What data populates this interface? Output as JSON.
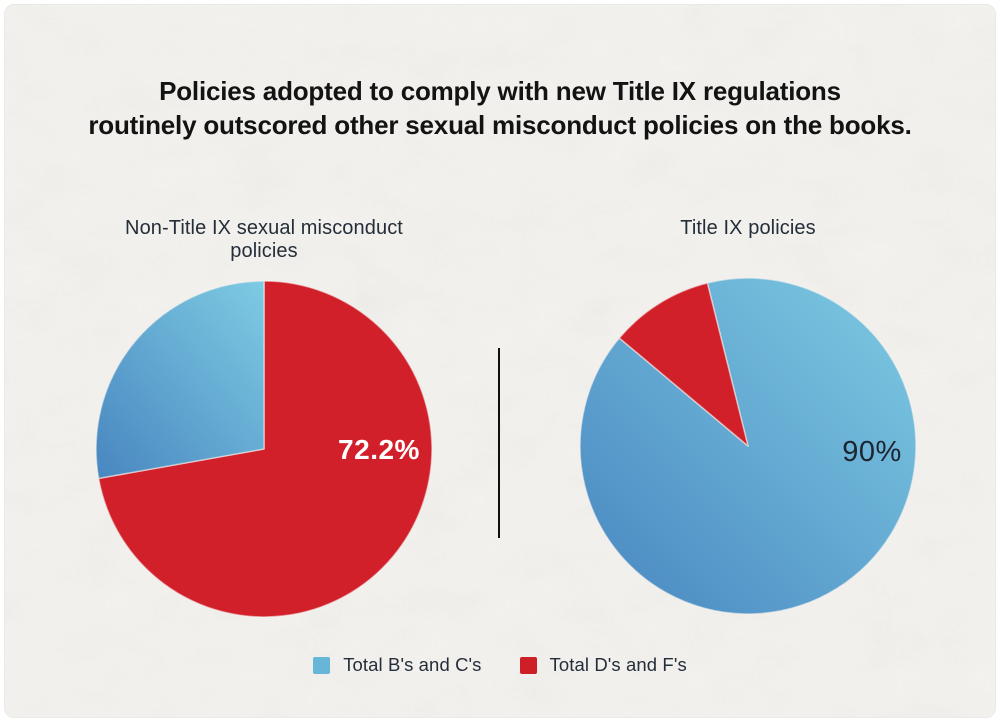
{
  "title": {
    "line1": "Policies adopted to comply with new Title IX regulations",
    "line2": "routinely outscored other sexual misconduct policies on the books."
  },
  "chart_data": [
    {
      "type": "pie",
      "title": "Non-Title IX sexual misconduct policies",
      "start_angle_deg": 0,
      "slices": [
        {
          "name": "Total D's and F's",
          "value": 72.2,
          "color": "red",
          "display": "72.2%"
        },
        {
          "name": "Total B's and C's",
          "value": 27.8,
          "color": "blue",
          "display": ""
        }
      ]
    },
    {
      "type": "pie",
      "title": "Title IX policies",
      "start_angle_deg": 346,
      "slices": [
        {
          "name": "Total B's and C's",
          "value": 90,
          "color": "blue",
          "display": "90%"
        },
        {
          "name": "Total D's and F's",
          "value": 10,
          "color": "red",
          "display": ""
        }
      ]
    }
  ],
  "legend": [
    {
      "label": "Total B's and C's",
      "color": "blue"
    },
    {
      "label": "Total D's and F's",
      "color": "red"
    }
  ],
  "colors": {
    "red": "#d2202b",
    "blue_gradient_dark": "#4886c0",
    "blue_gradient_light": "#7ecbe3",
    "legend_blue": "#67b6d8",
    "legend_red": "#cf1f26",
    "label_on_red": "#ffffff",
    "label_on_blue": "#1d2531",
    "text_dark": "#242e3a",
    "title_text": "#131313",
    "background": "#f5f3ef",
    "divider": "#101010"
  }
}
